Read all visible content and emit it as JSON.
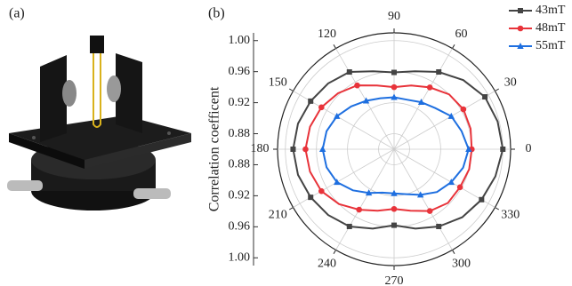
{
  "panel_a_label": "(a)",
  "chart_data": {
    "type": "polar",
    "panel_label": "(b)",
    "ylabel": "Correlation coefficent",
    "theta": [
      0,
      15,
      30,
      45,
      60,
      75,
      90,
      105,
      120,
      135,
      150,
      165,
      180,
      195,
      210,
      225,
      240,
      255,
      270,
      285,
      300,
      315,
      330,
      345
    ],
    "thetaticks": [
      0,
      30,
      60,
      90,
      120,
      150,
      180,
      210,
      240,
      270,
      300,
      330
    ],
    "rlim": [
      0.86,
      1.01
    ],
    "rticks": [
      {
        "value": 0.88,
        "label": "0.88"
      },
      {
        "value": 0.92,
        "label": "0.92"
      },
      {
        "value": 0.96,
        "label": "0.96"
      },
      {
        "value": 1.0,
        "label": "1.00"
      }
    ],
    "grid": true,
    "legend": "top-right",
    "series": [
      {
        "name": "43mT",
        "color": "#444444",
        "marker": "square",
        "values": [
          1.0,
          0.998,
          0.995,
          0.986,
          0.975,
          0.964,
          0.959,
          0.964,
          0.975,
          0.98,
          0.984,
          0.988,
          0.99,
          0.988,
          0.984,
          0.98,
          0.975,
          0.966,
          0.958,
          0.966,
          0.975,
          0.984,
          0.99,
          0.995
        ]
      },
      {
        "name": "48mT",
        "color": "#e8333a",
        "marker": "circle",
        "values": [
          0.96,
          0.962,
          0.963,
          0.96,
          0.952,
          0.945,
          0.94,
          0.945,
          0.955,
          0.962,
          0.968,
          0.972,
          0.974,
          0.972,
          0.968,
          0.96,
          0.95,
          0.942,
          0.937,
          0.942,
          0.952,
          0.958,
          0.958,
          0.96
        ]
      },
      {
        "name": "55mT",
        "color": "#1e6fe0",
        "marker": "triangle",
        "values": [
          0.956,
          0.95,
          0.945,
          0.935,
          0.93,
          0.926,
          0.927,
          0.928,
          0.932,
          0.938,
          0.945,
          0.95,
          0.952,
          0.95,
          0.945,
          0.935,
          0.925,
          0.918,
          0.917,
          0.92,
          0.928,
          0.938,
          0.945,
          0.952
        ]
      }
    ]
  }
}
